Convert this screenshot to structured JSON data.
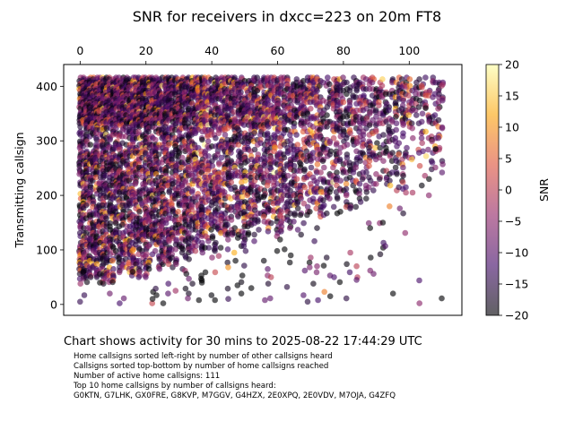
{
  "chart_data": {
    "type": "scatter",
    "title": "SNR for receivers in dxcc=223 on 20m FT8",
    "ylabel": "Transmitting callsign",
    "xlabel": "",
    "x_ticks": [
      0,
      20,
      40,
      60,
      80,
      100
    ],
    "y_ticks": [
      0,
      100,
      200,
      300,
      400
    ],
    "xlim": [
      -5,
      116
    ],
    "ylim": [
      -20,
      440
    ],
    "x_axis_position": "top",
    "grid": false,
    "colorbar": {
      "label": "SNR",
      "range": [
        -20,
        20
      ],
      "ticks": [
        20,
        15,
        10,
        5,
        0,
        -5,
        -10,
        -15,
        -20
      ],
      "colormap": "inferno",
      "colors": [
        "#000004",
        "#420a68",
        "#932667",
        "#dd513a",
        "#fca50a",
        "#fcffa4"
      ]
    },
    "point_count_estimate": 9000,
    "points_sample": [
      {
        "x": 0,
        "y": 5,
        "snr": -14
      },
      {
        "x": 1,
        "y": 60,
        "snr": -20
      },
      {
        "x": 3,
        "y": 120,
        "snr": -10
      },
      {
        "x": 6,
        "y": 40,
        "snr": -20
      },
      {
        "x": 9,
        "y": 20,
        "snr": -8
      },
      {
        "x": 12,
        "y": 2,
        "snr": -12
      },
      {
        "x": 16,
        "y": 60,
        "snr": -20
      },
      {
        "x": 22,
        "y": 10,
        "snr": -20
      },
      {
        "x": 26,
        "y": 80,
        "snr": -2
      },
      {
        "x": 29,
        "y": 25,
        "snr": -3
      },
      {
        "x": 33,
        "y": 130,
        "snr": -8
      },
      {
        "x": 37,
        "y": 40,
        "snr": -20
      },
      {
        "x": 45,
        "y": 10,
        "snr": -14
      },
      {
        "x": 49,
        "y": 20,
        "snr": -20
      },
      {
        "x": 52,
        "y": 30,
        "snr": -20
      },
      {
        "x": 57,
        "y": 65,
        "snr": -10
      },
      {
        "x": 58,
        "y": 50,
        "snr": 0
      },
      {
        "x": 64,
        "y": 90,
        "snr": -20
      },
      {
        "x": 72,
        "y": 70,
        "snr": -6
      },
      {
        "x": 76,
        "y": 15,
        "snr": -20
      },
      {
        "x": 84,
        "y": 70,
        "snr": 0
      },
      {
        "x": 84,
        "y": 45,
        "snr": -10
      },
      {
        "x": 92,
        "y": 150,
        "snr": -20
      },
      {
        "x": 94,
        "y": 180,
        "snr": 8
      },
      {
        "x": 99,
        "y": 205,
        "snr": -2
      },
      {
        "x": 101,
        "y": 205,
        "snr": -2
      },
      {
        "x": 106,
        "y": 230,
        "snr": -20
      },
      {
        "x": 108,
        "y": 285,
        "snr": -20
      },
      {
        "x": 110,
        "y": 325,
        "snr": -8
      },
      {
        "x": 105,
        "y": 360,
        "snr": -20
      }
    ]
  },
  "caption": "Chart shows activity for 30 mins to 2025-08-22 17:44:29 UTC",
  "notes": [
    "Home callsigns sorted left-right by number of other callsigns heard",
    "Callsigns sorted top-bottom by number of home callsigns reached",
    "Number of active home callsigns: 111",
    "Top 10 home callsigns by number of callsigns heard:",
    "G0KTN, G7LHK, GX0FRE, G8KVP, M7GGV, G4HZX, 2E0XPQ, 2E0VDV, M7OJA, G4ZFQ"
  ]
}
